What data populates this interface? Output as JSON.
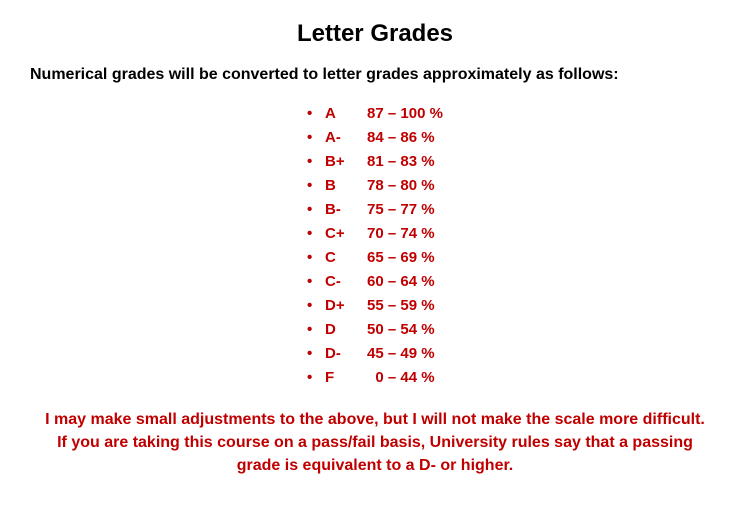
{
  "title": "Letter Grades",
  "intro": "Numerical grades will be converted to letter grades approximately as follows:",
  "grades": [
    {
      "letter": "A",
      "range": "87 – 100 %"
    },
    {
      "letter": "A-",
      "range": "84 – 86 %"
    },
    {
      "letter": "B+",
      "range": "81 – 83 %"
    },
    {
      "letter": "B",
      "range": "78 – 80 %"
    },
    {
      "letter": "B-",
      "range": "75 – 77 %"
    },
    {
      "letter": "C+",
      "range": "70 – 74 %"
    },
    {
      "letter": "C",
      "range": "65 – 69 %"
    },
    {
      "letter": "C-",
      "range": "60 – 64 %"
    },
    {
      "letter": "D+",
      "range": "55 – 59 %"
    },
    {
      "letter": "D",
      "range": "50 – 54 %"
    },
    {
      "letter": "D-",
      "range": "45 – 49 %"
    },
    {
      "letter": "F",
      "range": "  0 – 44 %"
    }
  ],
  "footer": "I may make small adjustments to the above, but I will not make the scale more difficult. If you are taking this course on a pass/fail basis, University rules say that a passing grade is equivalent to a D- or higher.",
  "colors": {
    "accent": "#c00000",
    "text": "#000000",
    "background": "#ffffff"
  },
  "bullet": "•"
}
